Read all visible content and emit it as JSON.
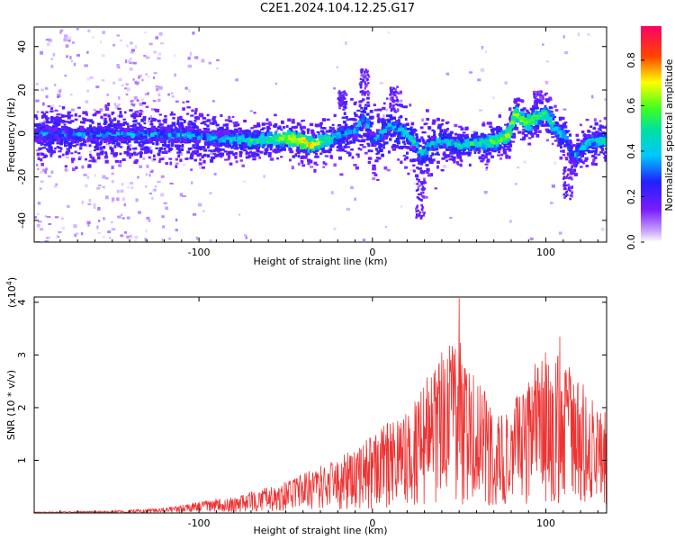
{
  "title": "C2E1.2024.104.12.25.G17",
  "chart_data": [
    {
      "type": "heatmap",
      "xlabel": "Height of straight line (km)",
      "ylabel": "Frequency (Hz)",
      "xlim": [
        -195,
        135
      ],
      "ylim": [
        -50,
        49
      ],
      "xticks": [
        -100,
        0,
        100
      ],
      "yticks": [
        -40,
        -20,
        0,
        20,
        40
      ],
      "colorbar": {
        "label": "Normalized spectral amplitude",
        "range": [
          0,
          0.95
        ],
        "ticks": [
          "0.0",
          "0.2",
          "0.4",
          "0.6",
          "0.8"
        ],
        "colormap": "rainbow (white-violet-blue-cyan-green-yellow-red-magenta)"
      },
      "ridge": {
        "x": [
          -195,
          -170,
          -140,
          -110,
          -90,
          -70,
          -55,
          -45,
          -35,
          -25,
          -18,
          -10,
          -5,
          0,
          10,
          20,
          25,
          28,
          32,
          40,
          50,
          60,
          70,
          78,
          82,
          88,
          95,
          100,
          105,
          112,
          115,
          118,
          125,
          135
        ],
        "y": [
          0,
          0,
          0,
          0,
          -2,
          -3,
          -2,
          -2,
          -5,
          -2,
          0,
          2,
          8,
          -3,
          4,
          0,
          -5,
          -10,
          -5,
          -3,
          -5,
          -4,
          -3,
          0,
          10,
          5,
          8,
          10,
          2,
          -2,
          -12,
          -8,
          -3,
          -3
        ]
      },
      "ridge_color_stops": [
        {
          "x": -195,
          "amp": 0.35
        },
        {
          "x": -90,
          "amp": 0.42
        },
        {
          "x": -60,
          "amp": 0.6
        },
        {
          "x": -40,
          "amp": 0.8
        },
        {
          "x": -20,
          "amp": 0.45
        },
        {
          "x": 0,
          "amp": 0.4
        },
        {
          "x": 20,
          "amp": 0.5
        },
        {
          "x": 40,
          "amp": 0.45
        },
        {
          "x": 60,
          "amp": 0.55
        },
        {
          "x": 78,
          "amp": 0.7
        },
        {
          "x": 82,
          "amp": 0.7
        },
        {
          "x": 100,
          "amp": 0.6
        },
        {
          "x": 112,
          "amp": 0.4
        },
        {
          "x": 135,
          "amp": 0.55
        }
      ]
    },
    {
      "type": "line",
      "xlabel": "Height of straight line (km)",
      "ylabel": "SNR (10 * v/v)",
      "multiplier_label": "(x10",
      "multiplier_exp": "4",
      "multiplier_close": ")",
      "xlim": [
        -195,
        135
      ],
      "ylim": [
        0,
        4.1
      ],
      "xticks": [
        -100,
        0,
        100
      ],
      "yticks": [
        1,
        2,
        3,
        4
      ],
      "series": [
        {
          "color": "#ee3333",
          "envelope_x": [
            -195,
            -150,
            -120,
            -100,
            -80,
            -60,
            -40,
            -20,
            0,
            20,
            30,
            40,
            45,
            50,
            55,
            60,
            70,
            80,
            90,
            100,
            110,
            120,
            135
          ],
          "envelope_y": [
            0.02,
            0.04,
            0.1,
            0.22,
            0.3,
            0.5,
            0.75,
            1.05,
            1.5,
            2.0,
            2.6,
            3.0,
            3.2,
            3.3,
            3.0,
            2.6,
            2.0,
            2.0,
            2.7,
            3.1,
            3.0,
            2.5,
            1.9
          ],
          "peaks": [
            {
              "x": 50,
              "y": 4.08
            },
            {
              "x": 108,
              "y": 3.35
            },
            {
              "x": 40,
              "y": 3.05
            }
          ]
        }
      ]
    }
  ]
}
